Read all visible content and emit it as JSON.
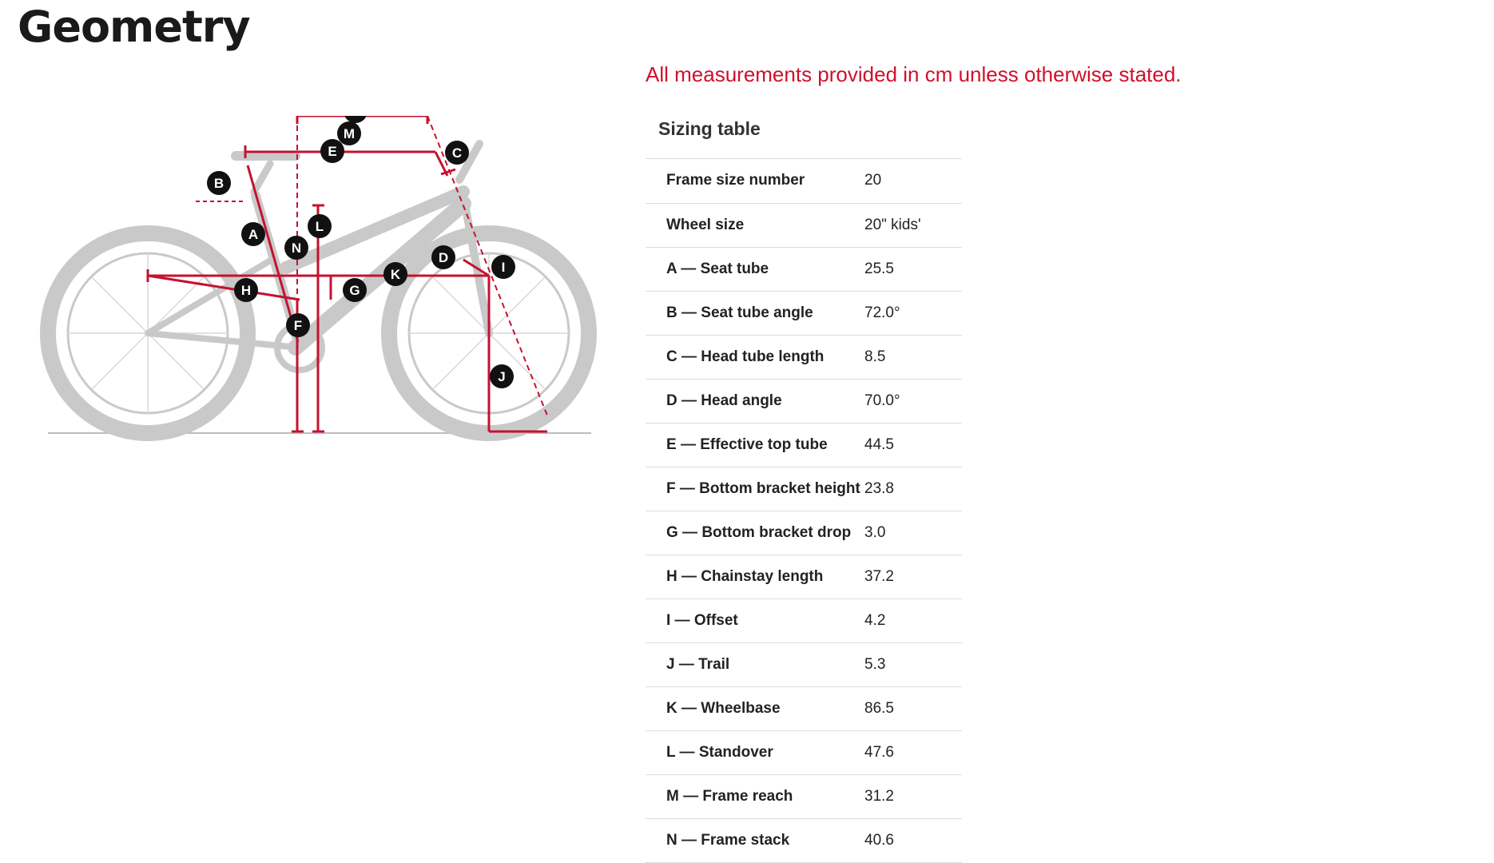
{
  "page": {
    "title": "Geometry"
  },
  "notice": "All measurements provided in cm unless otherwise stated.",
  "sizing": {
    "title": "Sizing table",
    "rows": [
      {
        "label": "Frame size number",
        "value": "20"
      },
      {
        "label": "Wheel size",
        "value": "20\" kids'"
      },
      {
        "label": "A — Seat tube",
        "value": "25.5"
      },
      {
        "label": "B — Seat tube angle",
        "value": "72.0°"
      },
      {
        "label": "C — Head tube length",
        "value": "8.5"
      },
      {
        "label": "D — Head angle",
        "value": "70.0°"
      },
      {
        "label": "E — Effective top tube",
        "value": "44.5"
      },
      {
        "label": "F — Bottom bracket height",
        "value": "23.8"
      },
      {
        "label": "G — Bottom bracket drop",
        "value": "3.0"
      },
      {
        "label": "H — Chainstay length",
        "value": "37.2"
      },
      {
        "label": "I — Offset",
        "value": "4.2"
      },
      {
        "label": "J — Trail",
        "value": "5.3"
      },
      {
        "label": "K — Wheelbase",
        "value": "86.5"
      },
      {
        "label": "L — Standover",
        "value": "47.6"
      },
      {
        "label": "M — Frame reach",
        "value": "31.2"
      },
      {
        "label": "N — Frame stack",
        "value": "40.6"
      }
    ]
  },
  "diagram": {
    "markers": [
      "M",
      "E",
      "C",
      "B",
      "L",
      "A",
      "N",
      "D",
      "I",
      "K",
      "H",
      "G",
      "F",
      "J"
    ],
    "colors": {
      "dimension": "#c4122f",
      "bike": "#c9c9c9",
      "marker": "#111111"
    }
  }
}
